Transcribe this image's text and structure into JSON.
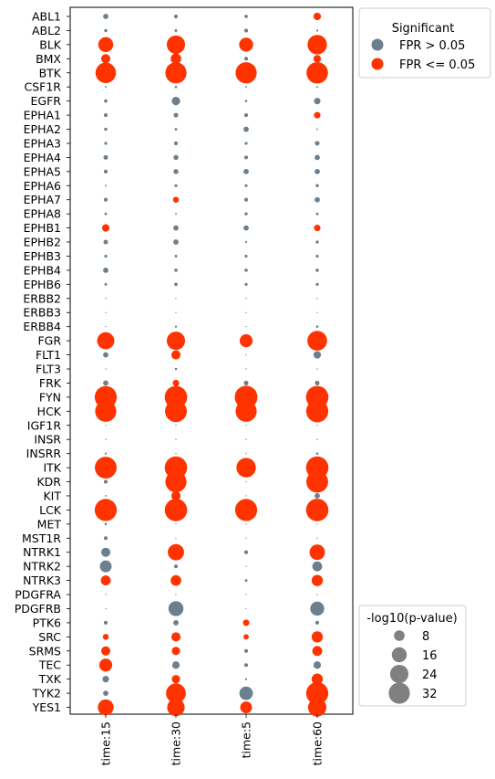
{
  "chart_data": {
    "type": "scatter",
    "subtype": "dot-plot",
    "categories_x": [
      "time:15",
      "time:30",
      "time:5",
      "time:60"
    ],
    "categories_y": [
      "ABL1",
      "ABL2",
      "BLK",
      "BMX",
      "BTK",
      "CSF1R",
      "EGFR",
      "EPHA1",
      "EPHA2",
      "EPHA3",
      "EPHA4",
      "EPHA5",
      "EPHA6",
      "EPHA7",
      "EPHA8",
      "EPHB1",
      "EPHB2",
      "EPHB3",
      "EPHB4",
      "EPHB6",
      "ERBB2",
      "ERBB3",
      "ERBB4",
      "FGR",
      "FLT1",
      "FLT3",
      "FRK",
      "FYN",
      "HCK",
      "IGF1R",
      "INSR",
      "INSRR",
      "ITK",
      "KDR",
      "KIT",
      "LCK",
      "MET",
      "MST1R",
      "NTRK1",
      "NTRK2",
      "NTRK3",
      "PDGFRA",
      "PDGFRB",
      "PTK6",
      "SRC",
      "SRMS",
      "TEC",
      "TXK",
      "TYK2",
      "YES1"
    ],
    "size_variable": "-log10(p-value)",
    "color_variable": "Significant",
    "points": [
      [
        "ABL1",
        "time:15",
        2,
        false
      ],
      [
        "ABL1",
        "time:30",
        1,
        false
      ],
      [
        "ABL1",
        "time:5",
        0.8,
        false
      ],
      [
        "ABL1",
        "time:60",
        4,
        true
      ],
      [
        "ABL2",
        "time:15",
        0.7,
        false
      ],
      [
        "ABL2",
        "time:30",
        0.5,
        false
      ],
      [
        "ABL2",
        "time:5",
        1,
        false
      ],
      [
        "ABL2",
        "time:60",
        0.3,
        false
      ],
      [
        "BLK",
        "time:15",
        16,
        true
      ],
      [
        "BLK",
        "time:30",
        24,
        true
      ],
      [
        "BLK",
        "time:5",
        14,
        true
      ],
      [
        "BLK",
        "time:60",
        27,
        true
      ],
      [
        "BMX",
        "time:15",
        6,
        true
      ],
      [
        "BMX",
        "time:30",
        8,
        true
      ],
      [
        "BMX",
        "time:5",
        1,
        false
      ],
      [
        "BMX",
        "time:60",
        4,
        true
      ],
      [
        "BTK",
        "time:15",
        30,
        true
      ],
      [
        "BTK",
        "time:30",
        32,
        true
      ],
      [
        "BTK",
        "time:5",
        32,
        true
      ],
      [
        "BTK",
        "time:60",
        33,
        true
      ],
      [
        "CSF1R",
        "time:15",
        0.2,
        false
      ],
      [
        "CSF1R",
        "time:30",
        0.4,
        false
      ],
      [
        "CSF1R",
        "time:5",
        0.2,
        false
      ],
      [
        "CSF1R",
        "time:60",
        0.2,
        false
      ],
      [
        "EGFR",
        "time:15",
        0.8,
        false
      ],
      [
        "EGFR",
        "time:30",
        5,
        false
      ],
      [
        "EGFR",
        "time:5",
        0.4,
        false
      ],
      [
        "EGFR",
        "time:60",
        3,
        false
      ],
      [
        "EPHA1",
        "time:15",
        1,
        false
      ],
      [
        "EPHA1",
        "time:30",
        1.5,
        false
      ],
      [
        "EPHA1",
        "time:5",
        1,
        false
      ],
      [
        "EPHA1",
        "time:60",
        3,
        true
      ],
      [
        "EPHA2",
        "time:15",
        0.7,
        false
      ],
      [
        "EPHA2",
        "time:30",
        0.5,
        false
      ],
      [
        "EPHA2",
        "time:5",
        2,
        false
      ],
      [
        "EPHA2",
        "time:60",
        0.2,
        false
      ],
      [
        "EPHA3",
        "time:15",
        0.6,
        false
      ],
      [
        "EPHA3",
        "time:30",
        1,
        false
      ],
      [
        "EPHA3",
        "time:5",
        0.6,
        false
      ],
      [
        "EPHA3",
        "time:60",
        1.5,
        false
      ],
      [
        "EPHA4",
        "time:15",
        1.5,
        false
      ],
      [
        "EPHA4",
        "time:30",
        1.8,
        false
      ],
      [
        "EPHA4",
        "time:5",
        1,
        false
      ],
      [
        "EPHA4",
        "time:60",
        2,
        false
      ],
      [
        "EPHA5",
        "time:15",
        1,
        false
      ],
      [
        "EPHA5",
        "time:30",
        1.8,
        false
      ],
      [
        "EPHA5",
        "time:5",
        2,
        false
      ],
      [
        "EPHA5",
        "time:60",
        2,
        false
      ],
      [
        "EPHA6",
        "time:15",
        0.2,
        false
      ],
      [
        "EPHA6",
        "time:30",
        0.6,
        false
      ],
      [
        "EPHA6",
        "time:5",
        0.6,
        false
      ],
      [
        "EPHA6",
        "time:60",
        0.7,
        false
      ],
      [
        "EPHA7",
        "time:15",
        1,
        false
      ],
      [
        "EPHA7",
        "time:30",
        2.5,
        true
      ],
      [
        "EPHA7",
        "time:5",
        1,
        false
      ],
      [
        "EPHA7",
        "time:60",
        2,
        false
      ],
      [
        "EPHA8",
        "time:15",
        0.5,
        false
      ],
      [
        "EPHA8",
        "time:30",
        0.2,
        false
      ],
      [
        "EPHA8",
        "time:5",
        0.7,
        false
      ],
      [
        "EPHA8",
        "time:60",
        0.5,
        false
      ],
      [
        "EPHB1",
        "time:15",
        4,
        true
      ],
      [
        "EPHB1",
        "time:30",
        2,
        false
      ],
      [
        "EPHB1",
        "time:5",
        2,
        false
      ],
      [
        "EPHB1",
        "time:60",
        3,
        true
      ],
      [
        "EPHB2",
        "time:15",
        1.5,
        false
      ],
      [
        "EPHB2",
        "time:30",
        2,
        false
      ],
      [
        "EPHB2",
        "time:5",
        0.3,
        false
      ],
      [
        "EPHB2",
        "time:60",
        0.7,
        false
      ],
      [
        "EPHB3",
        "time:15",
        0.6,
        false
      ],
      [
        "EPHB3",
        "time:30",
        0.5,
        false
      ],
      [
        "EPHB3",
        "time:5",
        0.6,
        false
      ],
      [
        "EPHB3",
        "time:60",
        0.6,
        false
      ],
      [
        "EPHB4",
        "time:15",
        2,
        false
      ],
      [
        "EPHB4",
        "time:30",
        0.8,
        false
      ],
      [
        "EPHB4",
        "time:5",
        0.8,
        false
      ],
      [
        "EPHB4",
        "time:60",
        0.8,
        false
      ],
      [
        "EPHB6",
        "time:15",
        0.5,
        false
      ],
      [
        "EPHB6",
        "time:30",
        0.8,
        false
      ],
      [
        "EPHB6",
        "time:5",
        0.6,
        false
      ],
      [
        "EPHB6",
        "time:60",
        0.6,
        false
      ],
      [
        "ERBB2",
        "time:15",
        0.1,
        false
      ],
      [
        "ERBB2",
        "time:30",
        0.1,
        false
      ],
      [
        "ERBB2",
        "time:5",
        0.1,
        false
      ],
      [
        "ERBB2",
        "time:60",
        0.1,
        false
      ],
      [
        "ERBB3",
        "time:15",
        0.1,
        false
      ],
      [
        "ERBB3",
        "time:30",
        0.1,
        false
      ],
      [
        "ERBB3",
        "time:5",
        0.1,
        false
      ],
      [
        "ERBB3",
        "time:60",
        0.1,
        false
      ],
      [
        "ERBB4",
        "time:15",
        0.1,
        false
      ],
      [
        "ERBB4",
        "time:30",
        0.3,
        false
      ],
      [
        "ERBB4",
        "time:5",
        0.1,
        false
      ],
      [
        "ERBB4",
        "time:60",
        0.4,
        false
      ],
      [
        "FGR",
        "time:15",
        21,
        true
      ],
      [
        "FGR",
        "time:30",
        24,
        true
      ],
      [
        "FGR",
        "time:5",
        12,
        true
      ],
      [
        "FGR",
        "time:60",
        28,
        true
      ],
      [
        "FLT1",
        "time:15",
        2,
        false
      ],
      [
        "FLT1",
        "time:30",
        6,
        true
      ],
      [
        "FLT1",
        "time:5",
        0.1,
        false
      ],
      [
        "FLT1",
        "time:60",
        4,
        false
      ],
      [
        "FLT3",
        "time:15",
        0.1,
        false
      ],
      [
        "FLT3",
        "time:30",
        0.4,
        false
      ],
      [
        "FLT3",
        "time:5",
        0.1,
        false
      ],
      [
        "FLT3",
        "time:60",
        0.1,
        false
      ],
      [
        "FRK",
        "time:15",
        2,
        false
      ],
      [
        "FRK",
        "time:30",
        3,
        true
      ],
      [
        "FRK",
        "time:5",
        1.5,
        false
      ],
      [
        "FRK",
        "time:60",
        1.5,
        false
      ],
      [
        "FYN",
        "time:15",
        35,
        true
      ],
      [
        "FYN",
        "time:30",
        36,
        true
      ],
      [
        "FYN",
        "time:5",
        37,
        true
      ],
      [
        "FYN",
        "time:60",
        36,
        true
      ],
      [
        "HCK",
        "time:15",
        32,
        true
      ],
      [
        "HCK",
        "time:30",
        34,
        true
      ],
      [
        "HCK",
        "time:5",
        32,
        true
      ],
      [
        "HCK",
        "time:60",
        35,
        true
      ],
      [
        "IGF1R",
        "time:15",
        0.1,
        false
      ],
      [
        "IGF1R",
        "time:30",
        0.1,
        false
      ],
      [
        "IGF1R",
        "time:5",
        0.1,
        false
      ],
      [
        "IGF1R",
        "time:60",
        0.1,
        false
      ],
      [
        "INSR",
        "time:15",
        0.1,
        false
      ],
      [
        "INSR",
        "time:30",
        0.1,
        false
      ],
      [
        "INSR",
        "time:5",
        0.1,
        false
      ],
      [
        "INSR",
        "time:60",
        0.1,
        false
      ],
      [
        "INSRR",
        "time:15",
        0.3,
        false
      ],
      [
        "INSRR",
        "time:30",
        0.1,
        false
      ],
      [
        "INSRR",
        "time:5",
        0.1,
        false
      ],
      [
        "INSRR",
        "time:60",
        0.4,
        false
      ],
      [
        "ITK",
        "time:15",
        34,
        true
      ],
      [
        "ITK",
        "time:30",
        36,
        true
      ],
      [
        "ITK",
        "time:5",
        27,
        true
      ],
      [
        "ITK",
        "time:60",
        36,
        true
      ],
      [
        "KDR",
        "time:15",
        1,
        false
      ],
      [
        "KDR",
        "time:30",
        32,
        true
      ],
      [
        "KDR",
        "time:5",
        0.1,
        false
      ],
      [
        "KDR",
        "time:60",
        34,
        true
      ],
      [
        "KIT",
        "time:15",
        0.2,
        false
      ],
      [
        "KIT",
        "time:30",
        6,
        true
      ],
      [
        "KIT",
        "time:5",
        0.1,
        false
      ],
      [
        "KIT",
        "time:60",
        2,
        false
      ],
      [
        "LCK",
        "time:15",
        35,
        true
      ],
      [
        "LCK",
        "time:30",
        36,
        true
      ],
      [
        "LCK",
        "time:5",
        35,
        true
      ],
      [
        "LCK",
        "time:60",
        36,
        true
      ],
      [
        "MET",
        "time:15",
        0.4,
        false
      ],
      [
        "MET",
        "time:30",
        0.1,
        false
      ],
      [
        "MET",
        "time:5",
        0.1,
        false
      ],
      [
        "MET",
        "time:60",
        0.1,
        false
      ],
      [
        "MST1R",
        "time:15",
        1,
        false
      ],
      [
        "MST1R",
        "time:30",
        0.1,
        false
      ],
      [
        "MST1R",
        "time:5",
        0.1,
        false
      ],
      [
        "MST1R",
        "time:60",
        0.1,
        false
      ],
      [
        "NTRK1",
        "time:15",
        6,
        false
      ],
      [
        "NTRK1",
        "time:30",
        19,
        true
      ],
      [
        "NTRK1",
        "time:5",
        1,
        false
      ],
      [
        "NTRK1",
        "time:60",
        17,
        true
      ],
      [
        "NTRK2",
        "time:15",
        10,
        false
      ],
      [
        "NTRK2",
        "time:30",
        1,
        false
      ],
      [
        "NTRK2",
        "time:5",
        0.1,
        false
      ],
      [
        "NTRK2",
        "time:60",
        7,
        false
      ],
      [
        "NTRK3",
        "time:15",
        7,
        true
      ],
      [
        "NTRK3",
        "time:30",
        8,
        true
      ],
      [
        "NTRK3",
        "time:5",
        0.5,
        false
      ],
      [
        "NTRK3",
        "time:60",
        9,
        true
      ],
      [
        "PDGFRA",
        "time:15",
        0.1,
        false
      ],
      [
        "PDGFRA",
        "time:30",
        0.1,
        false
      ],
      [
        "PDGFRA",
        "time:5",
        0.1,
        false
      ],
      [
        "PDGFRA",
        "time:60",
        0.1,
        false
      ],
      [
        "PDGFRB",
        "time:15",
        0.1,
        false
      ],
      [
        "PDGFRB",
        "time:30",
        16,
        false
      ],
      [
        "PDGFRB",
        "time:5",
        0.1,
        false
      ],
      [
        "PDGFRB",
        "time:60",
        14,
        false
      ],
      [
        "PTK6",
        "time:15",
        1,
        false
      ],
      [
        "PTK6",
        "time:30",
        2,
        false
      ],
      [
        "PTK6",
        "time:5",
        3,
        true
      ],
      [
        "PTK6",
        "time:60",
        1,
        false
      ],
      [
        "SRC",
        "time:15",
        2.5,
        true
      ],
      [
        "SRC",
        "time:30",
        6,
        true
      ],
      [
        "SRC",
        "time:5",
        2,
        true
      ],
      [
        "SRC",
        "time:60",
        9,
        true
      ],
      [
        "SRMS",
        "time:15",
        6,
        true
      ],
      [
        "SRMS",
        "time:30",
        5,
        true
      ],
      [
        "SRMS",
        "time:5",
        1,
        false
      ],
      [
        "SRMS",
        "time:60",
        7,
        true
      ],
      [
        "TEC",
        "time:15",
        12,
        true
      ],
      [
        "TEC",
        "time:30",
        4,
        false
      ],
      [
        "TEC",
        "time:5",
        1,
        false
      ],
      [
        "TEC",
        "time:60",
        4,
        false
      ],
      [
        "TXK",
        "time:15",
        3,
        false
      ],
      [
        "TXK",
        "time:30",
        5,
        true
      ],
      [
        "TXK",
        "time:5",
        0.3,
        false
      ],
      [
        "TXK",
        "time:60",
        9,
        true
      ],
      [
        "TYK2",
        "time:15",
        2,
        false
      ],
      [
        "TYK2",
        "time:30",
        28,
        true
      ],
      [
        "TYK2",
        "time:5",
        13,
        false
      ],
      [
        "TYK2",
        "time:60",
        35,
        true
      ],
      [
        "YES1",
        "time:15",
        18,
        true
      ],
      [
        "YES1",
        "time:30",
        22,
        true
      ],
      [
        "YES1",
        "time:5",
        10,
        true
      ],
      [
        "YES1",
        "time:60",
        24,
        true
      ]
    ],
    "colors": {
      "not_significant": "#6c7f8e",
      "significant": "#ff3300",
      "legend_size_marker": "#808080"
    },
    "legend_color": {
      "title": "Significant",
      "entries": [
        {
          "label": "FPR > 0.05",
          "significant": false
        },
        {
          "label": "FPR <= 0.05",
          "significant": true
        }
      ]
    },
    "legend_size": {
      "title": "-log10(p-value)",
      "entries": [
        {
          "label": "8",
          "value": 8
        },
        {
          "label": "16",
          "value": 16
        },
        {
          "label": "24",
          "value": 24
        },
        {
          "label": "32",
          "value": 32
        }
      ]
    },
    "legend_placement": "outside-right"
  }
}
